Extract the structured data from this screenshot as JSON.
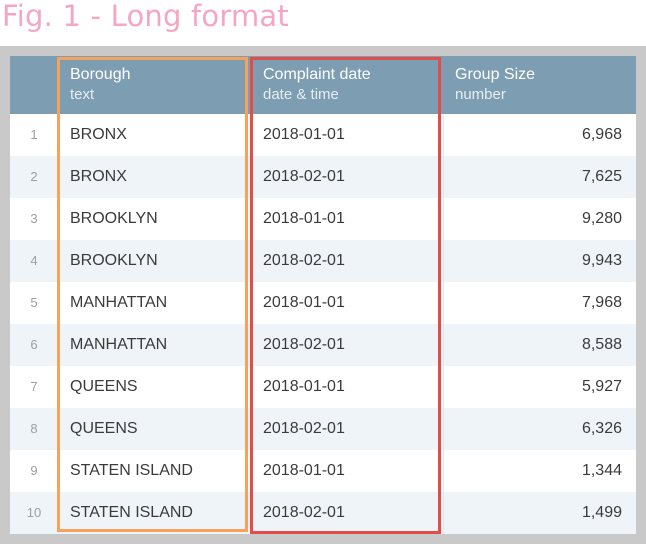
{
  "figure": {
    "title": "Fig. 1 - Long format"
  },
  "colors": {
    "title": "#f4a7c4",
    "header_bg": "#7d9db2",
    "stripe_bg": "#eef4f7",
    "frame_bg": "#c9c9c9",
    "highlight_borough": "#f6a25d",
    "highlight_date": "#e24d4a"
  },
  "table": {
    "columns": [
      {
        "name": "Borough",
        "type": "text"
      },
      {
        "name": "Complaint date",
        "type": "date & time"
      },
      {
        "name": "Group Size",
        "type": "number"
      }
    ],
    "rows": [
      {
        "index": "1",
        "borough": "BRONX",
        "date": "2018-01-01",
        "size": "6,968"
      },
      {
        "index": "2",
        "borough": "BRONX",
        "date": "2018-02-01",
        "size": "7,625"
      },
      {
        "index": "3",
        "borough": "BROOKLYN",
        "date": "2018-01-01",
        "size": "9,280"
      },
      {
        "index": "4",
        "borough": "BROOKLYN",
        "date": "2018-02-01",
        "size": "9,943"
      },
      {
        "index": "5",
        "borough": "MANHATTAN",
        "date": "2018-01-01",
        "size": "7,968"
      },
      {
        "index": "6",
        "borough": "MANHATTAN",
        "date": "2018-02-01",
        "size": "8,588"
      },
      {
        "index": "7",
        "borough": "QUEENS",
        "date": "2018-01-01",
        "size": "5,927"
      },
      {
        "index": "8",
        "borough": "QUEENS",
        "date": "2018-02-01",
        "size": "6,326"
      },
      {
        "index": "9",
        "borough": "STATEN ISLAND",
        "date": "2018-01-01",
        "size": "1,344"
      },
      {
        "index": "10",
        "borough": "STATEN ISLAND",
        "date": "2018-02-01",
        "size": "1,499"
      }
    ]
  }
}
